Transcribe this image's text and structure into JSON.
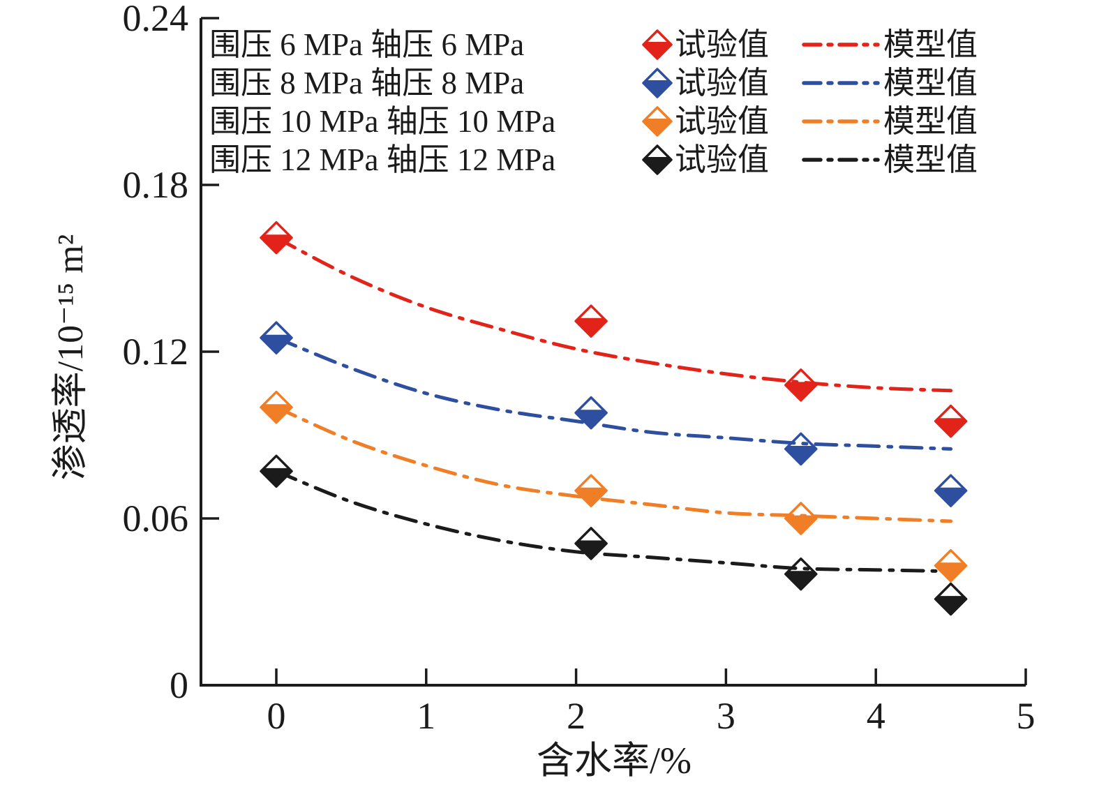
{
  "chart_data": {
    "type": "scatter",
    "title": "",
    "xlabel": "含水率/%",
    "ylabel": "渗透率/10⁻¹⁵ m²",
    "xlim": [
      -0.5,
      5
    ],
    "ylim": [
      0,
      0.24
    ],
    "xticks": [
      0,
      1,
      2,
      3,
      4,
      5
    ],
    "yticks": [
      {
        "value": 0,
        "label": "0"
      },
      {
        "value": 0.06,
        "label": "0.06"
      },
      {
        "value": 0.12,
        "label": "0.12"
      },
      {
        "value": 0.18,
        "label": "0.18"
      },
      {
        "value": 0.24,
        "label": "0.24"
      }
    ],
    "grid": false,
    "legend_position": "top-left-inside",
    "axis_color": "#1b1b1b",
    "series": [
      {
        "name": "围压 6 MPa 轴压 6 MPa",
        "color": "#e2231a",
        "test_label": "试验值",
        "model_label": "模型值",
        "test_points": [
          [
            0,
            0.161
          ],
          [
            2.1,
            0.131
          ],
          [
            3.5,
            0.108
          ],
          [
            4.5,
            0.095
          ]
        ],
        "model_points": [
          [
            0,
            0.161
          ],
          [
            0.5,
            0.147
          ],
          [
            1,
            0.136
          ],
          [
            1.5,
            0.128
          ],
          [
            2,
            0.121
          ],
          [
            2.5,
            0.116
          ],
          [
            3,
            0.112
          ],
          [
            3.5,
            0.109
          ],
          [
            4,
            0.107
          ],
          [
            4.5,
            0.106
          ]
        ]
      },
      {
        "name": "围压 8 MPa 轴压 8 MPa",
        "color": "#2e4fa0",
        "test_label": "试验值",
        "model_label": "模型值",
        "test_points": [
          [
            0,
            0.125
          ],
          [
            2.1,
            0.098
          ],
          [
            3.5,
            0.085
          ],
          [
            4.5,
            0.07
          ]
        ],
        "model_points": [
          [
            0,
            0.125
          ],
          [
            0.5,
            0.114
          ],
          [
            1,
            0.105
          ],
          [
            1.5,
            0.099
          ],
          [
            2,
            0.095
          ],
          [
            2.5,
            0.091
          ],
          [
            3,
            0.089
          ],
          [
            3.5,
            0.087
          ],
          [
            4,
            0.086
          ],
          [
            4.5,
            0.085
          ]
        ]
      },
      {
        "name": "围压 10 MPa 轴压 10 MPa",
        "color": "#f07e26",
        "test_label": "试验值",
        "model_label": "模型值",
        "test_points": [
          [
            0,
            0.1
          ],
          [
            2.1,
            0.07
          ],
          [
            3.5,
            0.06
          ],
          [
            4.5,
            0.043
          ]
        ],
        "model_points": [
          [
            0,
            0.1
          ],
          [
            0.5,
            0.088
          ],
          [
            1,
            0.079
          ],
          [
            1.5,
            0.072
          ],
          [
            2,
            0.068
          ],
          [
            2.5,
            0.065
          ],
          [
            3,
            0.062
          ],
          [
            3.5,
            0.061
          ],
          [
            4,
            0.06
          ],
          [
            4.5,
            0.059
          ]
        ]
      },
      {
        "name": "围压 12 MPa 轴压 12 MPa",
        "color": "#1b1b1b",
        "test_label": "试验值",
        "model_label": "模型值",
        "test_points": [
          [
            0,
            0.077
          ],
          [
            2.1,
            0.051
          ],
          [
            3.5,
            0.04
          ],
          [
            4.5,
            0.031
          ]
        ],
        "model_points": [
          [
            0,
            0.077
          ],
          [
            0.5,
            0.066
          ],
          [
            1,
            0.058
          ],
          [
            1.5,
            0.052
          ],
          [
            2,
            0.048
          ],
          [
            2.5,
            0.046
          ],
          [
            3,
            0.044
          ],
          [
            3.5,
            0.042
          ],
          [
            4,
            0.0415
          ],
          [
            4.5,
            0.041
          ]
        ]
      }
    ]
  }
}
